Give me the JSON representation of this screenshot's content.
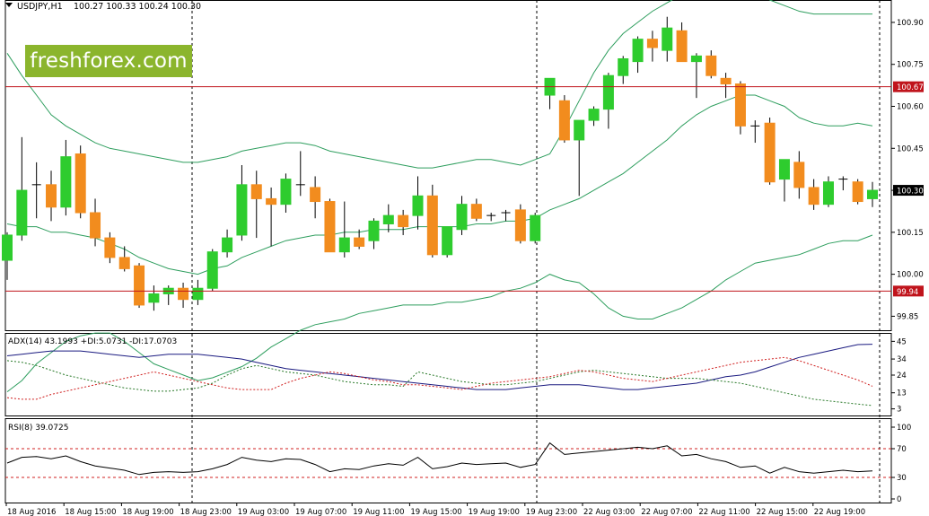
{
  "header": {
    "symbol": "USDJPY,H1",
    "ohlc": "100.27 100.33 100.24 100.30"
  },
  "logo": "freshforex.com",
  "colors": {
    "bull": "#2ecc2e",
    "bear": "#f28c1e",
    "band": "#2e9e5e",
    "level": "#c0141c",
    "adx": "#1a1a80",
    "plus_di": "#2a7a2a",
    "minus_di": "#d02020",
    "rsi": "#000000"
  },
  "price_axis": {
    "ticks": [
      "100.90",
      "100.75",
      "100.60",
      "100.45",
      "100.30",
      "100.15",
      "100.00",
      "99.85"
    ],
    "current": "100.30",
    "level_high": "100.67",
    "level_low": "99.94",
    "ylim": [
      99.8,
      100.98
    ]
  },
  "adx_panel": {
    "label": "ADX(14) 43.1993 +DI:5.0731 -DI:17.0703",
    "ticks": [
      "45",
      "34",
      "24",
      "13",
      "3"
    ],
    "ylim": [
      0,
      48
    ]
  },
  "rsi_panel": {
    "label": "RSI(8) 39.0725",
    "ticks": [
      "100",
      "70",
      "30",
      "0"
    ],
    "levels": [
      70,
      30
    ]
  },
  "time_axis": [
    "18 Aug 2016",
    "18 Aug 15:00",
    "18 Aug 19:00",
    "18 Aug 23:00",
    "19 Aug 03:00",
    "19 Aug 07:00",
    "19 Aug 11:00",
    "19 Aug 15:00",
    "19 Aug 19:00",
    "19 Aug 23:00",
    "22 Aug 03:00",
    "22 Aug 07:00",
    "22 Aug 11:00",
    "22 Aug 15:00",
    "22 Aug 19:00"
  ],
  "chart_data": [
    {
      "type": "candlestick",
      "title": "USDJPY,H1",
      "candles": [
        {
          "o": 100.05,
          "h": 100.15,
          "l": 99.98,
          "c": 100.14
        },
        {
          "o": 100.14,
          "h": 100.49,
          "l": 100.12,
          "c": 100.3
        },
        {
          "o": 100.31,
          "h": 100.4,
          "l": 100.2,
          "c": 100.32
        },
        {
          "o": 100.32,
          "h": 100.37,
          "l": 100.19,
          "c": 100.24
        },
        {
          "o": 100.24,
          "h": 100.48,
          "l": 100.21,
          "c": 100.42
        },
        {
          "o": 100.43,
          "h": 100.46,
          "l": 100.2,
          "c": 100.22
        },
        {
          "o": 100.22,
          "h": 100.27,
          "l": 100.1,
          "c": 100.13
        },
        {
          "o": 100.13,
          "h": 100.15,
          "l": 100.04,
          "c": 100.06
        },
        {
          "o": 100.06,
          "h": 100.1,
          "l": 100.01,
          "c": 100.02
        },
        {
          "o": 100.03,
          "h": 100.04,
          "l": 99.88,
          "c": 99.89
        },
        {
          "o": 99.9,
          "h": 99.96,
          "l": 99.87,
          "c": 99.93
        },
        {
          "o": 99.93,
          "h": 99.96,
          "l": 99.89,
          "c": 99.95
        },
        {
          "o": 99.95,
          "h": 99.97,
          "l": 99.88,
          "c": 99.91
        },
        {
          "o": 99.91,
          "h": 99.98,
          "l": 99.89,
          "c": 99.95
        },
        {
          "o": 99.95,
          "h": 100.09,
          "l": 99.94,
          "c": 100.08
        },
        {
          "o": 100.08,
          "h": 100.16,
          "l": 100.06,
          "c": 100.13
        },
        {
          "o": 100.14,
          "h": 100.39,
          "l": 100.12,
          "c": 100.32
        },
        {
          "o": 100.32,
          "h": 100.37,
          "l": 100.13,
          "c": 100.27
        },
        {
          "o": 100.27,
          "h": 100.31,
          "l": 100.1,
          "c": 100.25
        },
        {
          "o": 100.25,
          "h": 100.36,
          "l": 100.22,
          "c": 100.34
        },
        {
          "o": 100.31,
          "h": 100.44,
          "l": 100.28,
          "c": 100.32
        },
        {
          "o": 100.31,
          "h": 100.35,
          "l": 100.2,
          "c": 100.26
        },
        {
          "o": 100.26,
          "h": 100.27,
          "l": 100.08,
          "c": 100.08
        },
        {
          "o": 100.08,
          "h": 100.26,
          "l": 100.06,
          "c": 100.13
        },
        {
          "o": 100.13,
          "h": 100.16,
          "l": 100.09,
          "c": 100.1
        },
        {
          "o": 100.12,
          "h": 100.2,
          "l": 100.09,
          "c": 100.19
        },
        {
          "o": 100.18,
          "h": 100.25,
          "l": 100.15,
          "c": 100.21
        },
        {
          "o": 100.21,
          "h": 100.23,
          "l": 100.14,
          "c": 100.17
        },
        {
          "o": 100.21,
          "h": 100.35,
          "l": 100.16,
          "c": 100.28
        },
        {
          "o": 100.28,
          "h": 100.32,
          "l": 100.06,
          "c": 100.07
        },
        {
          "o": 100.07,
          "h": 100.17,
          "l": 100.06,
          "c": 100.17
        },
        {
          "o": 100.16,
          "h": 100.28,
          "l": 100.14,
          "c": 100.25
        },
        {
          "o": 100.25,
          "h": 100.27,
          "l": 100.19,
          "c": 100.2
        },
        {
          "o": 100.21,
          "h": 100.22,
          "l": 100.19,
          "c": 100.21
        },
        {
          "o": 100.21,
          "h": 100.23,
          "l": 100.19,
          "c": 100.22
        },
        {
          "o": 100.23,
          "h": 100.25,
          "l": 100.11,
          "c": 100.12
        },
        {
          "o": 100.12,
          "h": 100.22,
          "l": 100.11,
          "c": 100.21
        },
        {
          "o": 100.64,
          "h": 100.7,
          "l": 100.59,
          "c": 100.7
        },
        {
          "o": 100.62,
          "h": 100.64,
          "l": 100.47,
          "c": 100.48
        },
        {
          "o": 100.48,
          "h": 100.55,
          "l": 100.28,
          "c": 100.55
        },
        {
          "o": 100.55,
          "h": 100.6,
          "l": 100.53,
          "c": 100.59
        },
        {
          "o": 100.59,
          "h": 100.72,
          "l": 100.52,
          "c": 100.71
        },
        {
          "o": 100.71,
          "h": 100.78,
          "l": 100.68,
          "c": 100.77
        },
        {
          "o": 100.76,
          "h": 100.85,
          "l": 100.72,
          "c": 100.84
        },
        {
          "o": 100.84,
          "h": 100.87,
          "l": 100.76,
          "c": 100.81
        },
        {
          "o": 100.8,
          "h": 100.92,
          "l": 100.76,
          "c": 100.88
        },
        {
          "o": 100.87,
          "h": 100.9,
          "l": 100.76,
          "c": 100.76
        },
        {
          "o": 100.76,
          "h": 100.79,
          "l": 100.63,
          "c": 100.78
        },
        {
          "o": 100.78,
          "h": 100.8,
          "l": 100.7,
          "c": 100.71
        },
        {
          "o": 100.7,
          "h": 100.72,
          "l": 100.63,
          "c": 100.68
        },
        {
          "o": 100.68,
          "h": 100.69,
          "l": 100.5,
          "c": 100.53
        },
        {
          "o": 100.52,
          "h": 100.55,
          "l": 100.47,
          "c": 100.53
        },
        {
          "o": 100.54,
          "h": 100.56,
          "l": 100.32,
          "c": 100.33
        },
        {
          "o": 100.34,
          "h": 100.4,
          "l": 100.26,
          "c": 100.41
        },
        {
          "o": 100.4,
          "h": 100.44,
          "l": 100.27,
          "c": 100.31
        },
        {
          "o": 100.31,
          "h": 100.34,
          "l": 100.23,
          "c": 100.25
        },
        {
          "o": 100.25,
          "h": 100.35,
          "l": 100.24,
          "c": 100.33
        },
        {
          "o": 100.33,
          "h": 100.35,
          "l": 100.3,
          "c": 100.34
        },
        {
          "o": 100.33,
          "h": 100.34,
          "l": 100.25,
          "c": 100.26
        },
        {
          "o": 100.27,
          "h": 100.33,
          "l": 100.24,
          "c": 100.3
        }
      ],
      "bollinger_upper": [
        100.79,
        100.71,
        100.64,
        100.57,
        100.53,
        100.5,
        100.47,
        100.45,
        100.44,
        100.43,
        100.42,
        100.41,
        100.4,
        100.4,
        100.41,
        100.42,
        100.44,
        100.45,
        100.46,
        100.47,
        100.47,
        100.46,
        100.44,
        100.43,
        100.42,
        100.41,
        100.4,
        100.39,
        100.38,
        100.38,
        100.39,
        100.4,
        100.41,
        100.41,
        100.4,
        100.39,
        100.41,
        100.43,
        100.52,
        100.62,
        100.72,
        100.8,
        100.86,
        100.9,
        100.94,
        100.97,
        101.0,
        101.03,
        101.04,
        101.03,
        101.02,
        101.01,
        100.98,
        100.96,
        100.94,
        100.93,
        100.93,
        100.93,
        100.93,
        100.93
      ],
      "bollinger_mid": [
        100.18,
        100.17,
        100.17,
        100.15,
        100.15,
        100.14,
        100.13,
        100.11,
        100.09,
        100.06,
        100.04,
        100.02,
        100.01,
        100.0,
        100.02,
        100.03,
        100.06,
        100.08,
        100.1,
        100.12,
        100.13,
        100.14,
        100.14,
        100.15,
        100.15,
        100.16,
        100.16,
        100.16,
        100.17,
        100.17,
        100.17,
        100.17,
        100.18,
        100.18,
        100.19,
        100.19,
        100.2,
        100.23,
        100.25,
        100.27,
        100.3,
        100.33,
        100.36,
        100.4,
        100.44,
        100.48,
        100.53,
        100.57,
        100.6,
        100.62,
        100.64,
        100.64,
        100.62,
        100.6,
        100.56,
        100.54,
        100.53,
        100.53,
        100.54,
        100.53
      ],
      "bollinger_lower": [
        99.58,
        99.62,
        99.68,
        99.72,
        99.76,
        99.78,
        99.79,
        99.79,
        99.76,
        99.72,
        99.68,
        99.66,
        99.64,
        99.62,
        99.63,
        99.65,
        99.67,
        99.7,
        99.74,
        99.77,
        99.8,
        99.82,
        99.83,
        99.84,
        99.86,
        99.87,
        99.88,
        99.89,
        99.89,
        99.89,
        99.9,
        99.9,
        99.91,
        99.92,
        99.94,
        99.95,
        99.97,
        100.0,
        99.98,
        99.97,
        99.93,
        99.88,
        99.85,
        99.84,
        99.84,
        99.86,
        99.88,
        99.91,
        99.94,
        99.98,
        100.01,
        100.04,
        100.05,
        100.06,
        100.07,
        100.09,
        100.11,
        100.12,
        100.12,
        100.14
      ]
    },
    {
      "type": "line",
      "title": "ADX(14) 43.1993 +DI:5.0731 -DI:17.0703",
      "ylim": [
        0,
        48
      ],
      "series": [
        {
          "name": "ADX",
          "values": [
            36,
            37,
            38,
            39,
            39,
            39,
            38,
            37,
            36,
            35,
            36,
            37,
            37,
            37,
            36,
            35,
            34,
            32,
            30,
            28,
            27,
            26,
            25,
            24,
            23,
            22,
            21,
            20,
            19,
            18,
            17,
            16,
            15,
            15,
            15,
            16,
            17,
            18,
            18,
            18,
            17,
            16,
            15,
            15,
            16,
            17,
            18,
            19,
            21,
            23,
            24,
            26,
            29,
            32,
            35,
            37,
            39,
            41,
            43,
            43.2
          ]
        },
        {
          "name": "+DI",
          "values": [
            33,
            32,
            30,
            27,
            24,
            22,
            20,
            18,
            16,
            15,
            14,
            14,
            15,
            16,
            19,
            24,
            28,
            30,
            28,
            26,
            25,
            24,
            22,
            20,
            19,
            18,
            18,
            17,
            26,
            24,
            22,
            20,
            19,
            18,
            18,
            19,
            20,
            22,
            24,
            26,
            27,
            26,
            25,
            24,
            23,
            22,
            22,
            22,
            21,
            20,
            19,
            17,
            15,
            13,
            11,
            9,
            8,
            7,
            6,
            5.07
          ]
        },
        {
          "name": "-DI",
          "values": [
            10,
            9,
            9,
            12,
            14,
            16,
            18,
            20,
            22,
            24,
            26,
            24,
            22,
            20,
            18,
            16,
            15,
            15,
            15,
            19,
            22,
            24,
            26,
            25,
            23,
            21,
            20,
            18,
            18,
            17,
            16,
            15,
            17,
            19,
            20,
            21,
            22,
            23,
            25,
            27,
            26,
            24,
            22,
            21,
            20,
            22,
            24,
            26,
            28,
            30,
            32,
            33,
            34,
            35,
            33,
            30,
            27,
            24,
            21,
            17.07
          ]
        }
      ]
    },
    {
      "type": "line",
      "title": "RSI(8) 39.0725",
      "ylim": [
        0,
        100
      ],
      "series": [
        {
          "name": "RSI",
          "values": [
            50,
            58,
            59,
            56,
            60,
            52,
            46,
            43,
            40,
            34,
            37,
            38,
            37,
            38,
            42,
            48,
            58,
            54,
            52,
            56,
            55,
            48,
            38,
            42,
            41,
            46,
            49,
            47,
            58,
            42,
            45,
            50,
            48,
            49,
            50,
            44,
            48,
            78,
            62,
            64,
            66,
            68,
            70,
            72,
            70,
            74,
            60,
            62,
            56,
            52,
            44,
            46,
            36,
            44,
            38,
            36,
            38,
            40,
            38,
            39.07
          ]
        }
      ]
    }
  ]
}
